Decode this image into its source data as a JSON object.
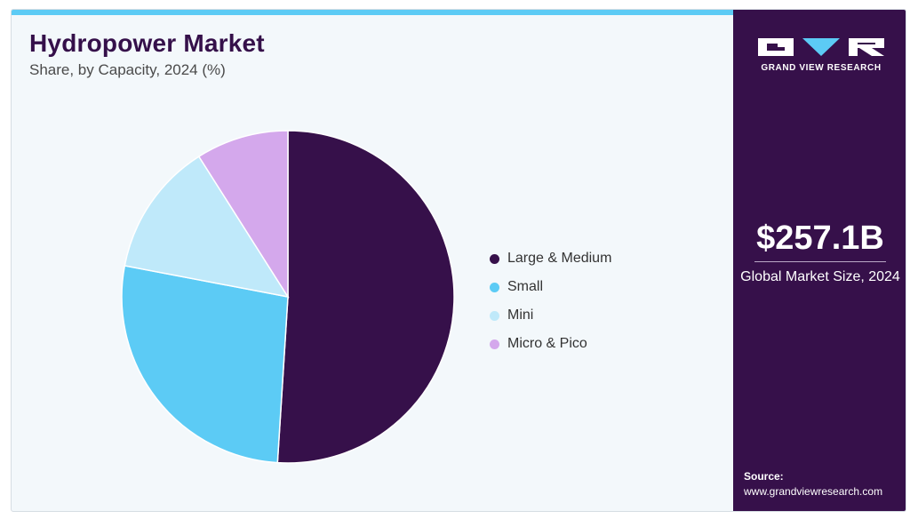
{
  "header": {
    "title": "Hydropower Market",
    "subtitle": "Share, by Capacity, 2024 (%)"
  },
  "chart_data": {
    "type": "pie",
    "title": "Hydropower Market",
    "subtitle": "Share, by Capacity, 2024 (%)",
    "categories": [
      "Large & Medium",
      "Small",
      "Mini",
      "Micro & Pico"
    ],
    "values": [
      51,
      27,
      13,
      9
    ],
    "colors": [
      "#36104a",
      "#5ccbf5",
      "#bfe9fa",
      "#d4a8ec"
    ],
    "legend": "right"
  },
  "side_panel": {
    "brand": "GRAND VIEW RESEARCH",
    "market_value": "$257.1B",
    "market_label": "Global Market Size, 2024",
    "source_label": "Source:",
    "source_url": "www.grandviewresearch.com",
    "colors": {
      "panel": "#36104a",
      "accent": "#5ccbf5"
    }
  }
}
